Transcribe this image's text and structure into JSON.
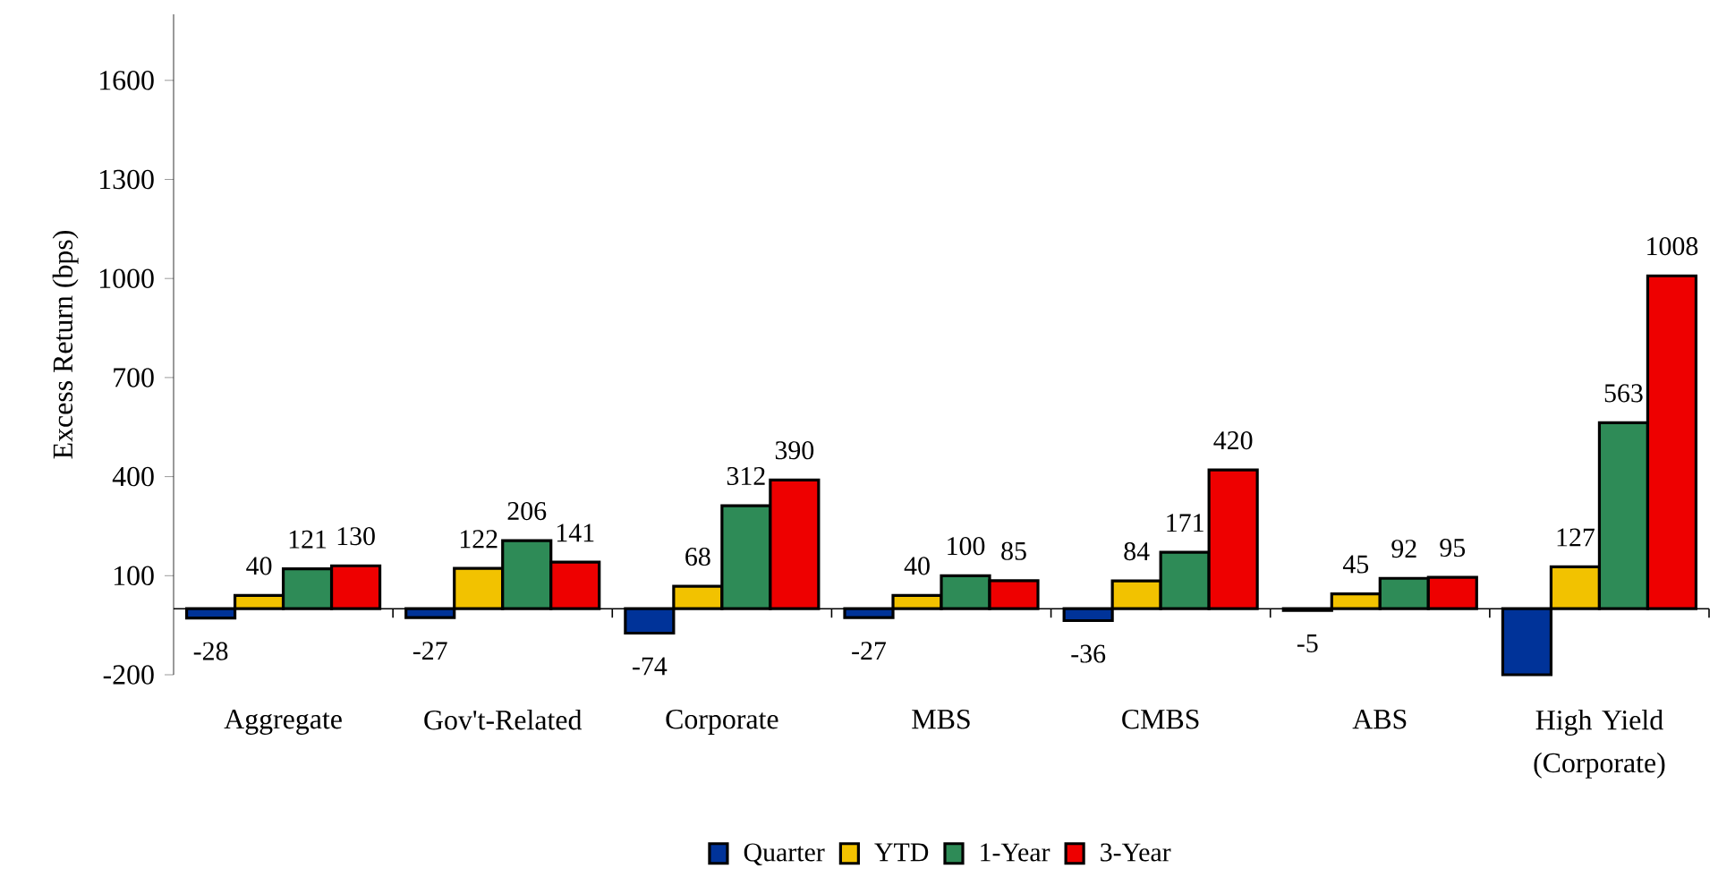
{
  "chart_data": {
    "type": "bar",
    "ylabel": "Excess Return (bps)",
    "categories": [
      "Aggregate",
      "Gov't-Related",
      "Corporate",
      "MBS",
      "CMBS",
      "ABS",
      "High Yield (Corporate)"
    ],
    "series": [
      {
        "name": "Quarter",
        "color": "#003399",
        "values": [
          -28,
          -27,
          -74,
          -27,
          -36,
          -5,
          -200
        ],
        "value_labels": [
          "-28",
          "-27",
          "-74",
          "-27",
          "-36",
          "-5",
          null
        ]
      },
      {
        "name": "YTD",
        "color": "#f2c200",
        "values": [
          40,
          122,
          68,
          40,
          84,
          45,
          127
        ],
        "value_labels": [
          "40",
          "122",
          "68",
          "40",
          "84",
          "45",
          "127"
        ]
      },
      {
        "name": "1-Year",
        "color": "#2e8b57",
        "values": [
          121,
          206,
          312,
          100,
          171,
          92,
          563
        ],
        "value_labels": [
          "121",
          "206",
          "312",
          "100",
          "171",
          "92",
          "563"
        ]
      },
      {
        "name": "3-Year",
        "color": "#ee0000",
        "values": [
          130,
          141,
          390,
          85,
          420,
          95,
          1008
        ],
        "value_labels": [
          "130",
          "141",
          "390",
          "85",
          "420",
          "95",
          "1008"
        ]
      }
    ],
    "ylim": [
      -200,
      1800
    ],
    "yticks": [
      -200,
      100,
      400,
      700,
      1000,
      1300,
      1600
    ],
    "grid": false,
    "legend": "bottom"
  }
}
